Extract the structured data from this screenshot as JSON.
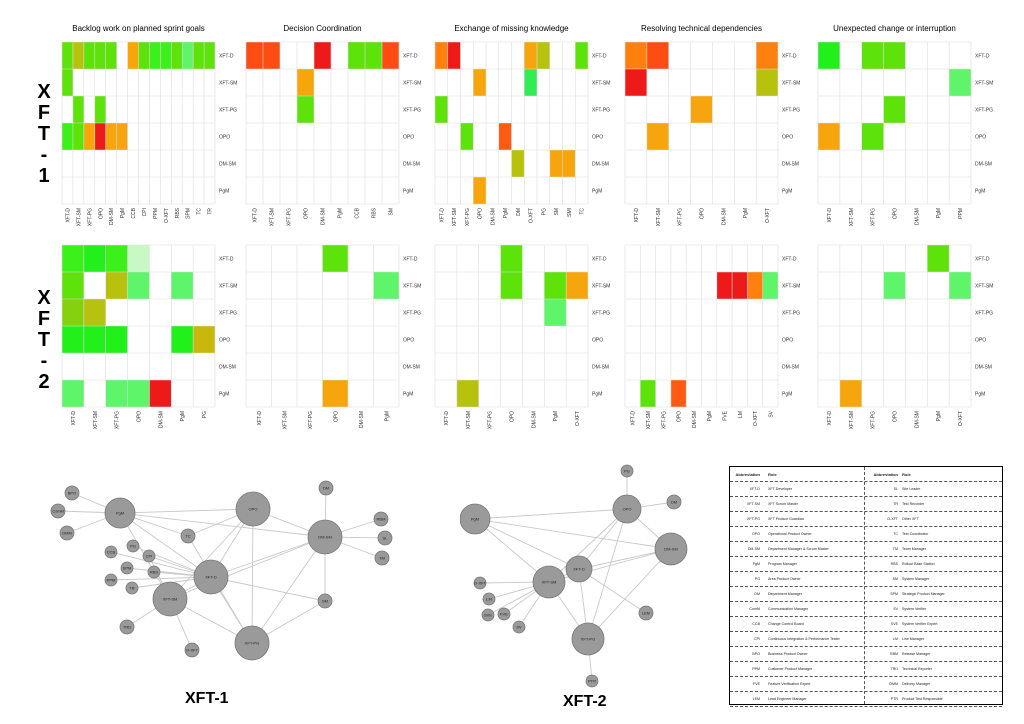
{
  "row_titles": [
    "XFT-1",
    "XFT-2"
  ],
  "panel_titles": [
    "Backlog work on planned sprint goals",
    "Decision Coordination",
    "Exchange of missing knowledge",
    "Resolving technical dependencies",
    "Unexpected change or interruption"
  ],
  "chart_data": [
    {
      "type": "heatmap",
      "group": "XFT-1",
      "title": "Backlog work on planned sprint goals",
      "rows": [
        "XFT-D",
        "XFT-SM",
        "XFT-PG",
        "OPO",
        "DM-SM",
        "PgM"
      ],
      "columns": [
        "XFT-D",
        "XFT-SM",
        "XFT-PG",
        "OPO",
        "DM-SM",
        "PgM",
        "CCB",
        "CPI",
        "PPM",
        "O-XFT",
        "RBS",
        "SPM",
        "TC",
        "TR"
      ],
      "cells": [
        [
          0,
          0,
          "#5de20a"
        ],
        [
          0,
          1,
          "#b7c20e"
        ],
        [
          0,
          2,
          "#5de20a"
        ],
        [
          0,
          3,
          "#5de20a"
        ],
        [
          0,
          4,
          "#5de20a"
        ],
        [
          0,
          6,
          "#f6a50d"
        ],
        [
          0,
          7,
          "#5de20a"
        ],
        [
          0,
          8,
          "#3cf01a"
        ],
        [
          0,
          9,
          "#3cf01a"
        ],
        [
          0,
          10,
          "#5de20a"
        ],
        [
          0,
          11,
          "#5ef56a"
        ],
        [
          0,
          12,
          "#5de20a"
        ],
        [
          0,
          13,
          "#5de20a"
        ],
        [
          1,
          0,
          "#5de20a"
        ],
        [
          2,
          1,
          "#5de20a"
        ],
        [
          2,
          3,
          "#5de20a"
        ],
        [
          3,
          0,
          "#3cf01a"
        ],
        [
          3,
          1,
          "#5de20a"
        ],
        [
          3,
          2,
          "#f6a50d"
        ],
        [
          3,
          3,
          "#ee1a1a"
        ],
        [
          3,
          4,
          "#f6a50d"
        ],
        [
          3,
          5,
          "#f6a50d"
        ]
      ]
    },
    {
      "type": "heatmap",
      "group": "XFT-1",
      "title": "Decision Coordination",
      "rows": [
        "XFT-D",
        "XFT-SM",
        "XFT-PG",
        "OPO",
        "DM-SM",
        "PgM"
      ],
      "columns": [
        "XFT-D",
        "XFT-SM",
        "XFT-PG",
        "OPO",
        "DM-SM",
        "PgM",
        "CCB",
        "RBS",
        "SM"
      ],
      "cells": [
        [
          0,
          0,
          "#ff4c12"
        ],
        [
          0,
          1,
          "#ff4c12"
        ],
        [
          0,
          4,
          "#ee1a1a"
        ],
        [
          0,
          6,
          "#5de20a"
        ],
        [
          0,
          7,
          "#5de20a"
        ],
        [
          0,
          8,
          "#ff4c12"
        ],
        [
          1,
          3,
          "#f6a50d"
        ],
        [
          2,
          3,
          "#5de20a"
        ]
      ]
    },
    {
      "type": "heatmap",
      "group": "XFT-1",
      "title": "Exchange of missing knowledge",
      "rows": [
        "XFT-D",
        "XFT-SM",
        "XFT-PG",
        "OPO",
        "DM-SM",
        "PgM"
      ],
      "columns": [
        "XFT-D",
        "XFT-SM",
        "XFT-PG",
        "OPO",
        "DM-SM",
        "PgM",
        "DM",
        "O-XFT",
        "PG",
        "SM",
        "SMI",
        "TC"
      ],
      "cells": [
        [
          0,
          0,
          "#ff7f0f"
        ],
        [
          0,
          1,
          "#ee1a1a"
        ],
        [
          0,
          7,
          "#f6a50d"
        ],
        [
          0,
          8,
          "#b7c20e"
        ],
        [
          0,
          11,
          "#5de20a"
        ],
        [
          1,
          3,
          "#f6a50d"
        ],
        [
          1,
          7,
          "#2eee52"
        ],
        [
          2,
          0,
          "#5de20a"
        ],
        [
          3,
          2,
          "#5de20a"
        ],
        [
          3,
          5,
          "#ff5a14"
        ],
        [
          4,
          6,
          "#b7c20e"
        ],
        [
          4,
          9,
          "#f6a50d"
        ],
        [
          4,
          10,
          "#f6a50d"
        ],
        [
          5,
          3,
          "#f6a50d"
        ]
      ]
    },
    {
      "type": "heatmap",
      "group": "XFT-1",
      "title": "Resolving technical dependencies",
      "rows": [
        "XFT-D",
        "XFT-SM",
        "XFT-PG",
        "OPO",
        "DM-SM",
        "PgM"
      ],
      "columns": [
        "XFT-D",
        "XFT-SM",
        "XFT-PG",
        "OPO",
        "DM-SM",
        "PgM",
        "O-XFT"
      ],
      "cells": [
        [
          0,
          0,
          "#ff7f0f"
        ],
        [
          0,
          1,
          "#ff4c12"
        ],
        [
          0,
          6,
          "#ff7f0f"
        ],
        [
          1,
          0,
          "#ee1a1a"
        ],
        [
          1,
          6,
          "#b7c20e"
        ],
        [
          2,
          3,
          "#f6a50d"
        ],
        [
          3,
          1,
          "#f6a50d"
        ]
      ]
    },
    {
      "type": "heatmap",
      "group": "XFT-1",
      "title": "Unexpected change or interruption",
      "rows": [
        "XFT-D",
        "XFT-SM",
        "XFT-PG",
        "OPO",
        "DM-SM",
        "PgM"
      ],
      "columns": [
        "XFT-D",
        "XFT-SM",
        "XFT-PG",
        "OPO",
        "DM-SM",
        "PgM",
        "PPM"
      ],
      "cells": [
        [
          0,
          0,
          "#21f01a"
        ],
        [
          0,
          2,
          "#5de20a"
        ],
        [
          0,
          3,
          "#5de20a"
        ],
        [
          1,
          6,
          "#5ef56a"
        ],
        [
          2,
          3,
          "#5de20a"
        ],
        [
          3,
          0,
          "#f6a50d"
        ],
        [
          3,
          2,
          "#5de20a"
        ]
      ]
    },
    {
      "type": "heatmap",
      "group": "XFT-2",
      "title": "Backlog work on planned sprint goals",
      "rows": [
        "XFT-D",
        "XFT-SM",
        "XFT-PG",
        "OPO",
        "DM-SM",
        "PgM"
      ],
      "columns": [
        "XFT-D",
        "XFT-SM",
        "XFT-PG",
        "OPO",
        "DM-SM",
        "PgM",
        "PG"
      ],
      "cells": [
        [
          0,
          0,
          "#3cf01a"
        ],
        [
          0,
          1,
          "#21f01a"
        ],
        [
          0,
          2,
          "#3cf01a"
        ],
        [
          0,
          3,
          "#c8f8c4"
        ],
        [
          1,
          0,
          "#5de20a"
        ],
        [
          1,
          2,
          "#b7c20e"
        ],
        [
          1,
          3,
          "#5ef56a"
        ],
        [
          1,
          5,
          "#5ef56a"
        ],
        [
          2,
          0,
          "#86d10e"
        ],
        [
          2,
          1,
          "#b7c20e"
        ],
        [
          3,
          0,
          "#21f01a"
        ],
        [
          3,
          1,
          "#21f01a"
        ],
        [
          3,
          2,
          "#21f01a"
        ],
        [
          3,
          5,
          "#21f01a"
        ],
        [
          3,
          6,
          "#c8b80e"
        ],
        [
          5,
          0,
          "#5ef56a"
        ],
        [
          5,
          2,
          "#5ef56a"
        ],
        [
          5,
          3,
          "#5ef56a"
        ],
        [
          5,
          4,
          "#ee1a1a"
        ]
      ]
    },
    {
      "type": "heatmap",
      "group": "XFT-2",
      "title": "Decision Coordination",
      "rows": [
        "XFT-D",
        "XFT-SM",
        "XFT-PG",
        "OPO",
        "DM-SM",
        "PgM"
      ],
      "columns": [
        "XFT-D",
        "XFT-SM",
        "XFT-PG",
        "OPO",
        "DM-SM",
        "PgM"
      ],
      "cells": [
        [
          0,
          3,
          "#5de20a"
        ],
        [
          1,
          5,
          "#5ef56a"
        ],
        [
          5,
          3,
          "#f6a50d"
        ]
      ]
    },
    {
      "type": "heatmap",
      "group": "XFT-2",
      "title": "Exchange of missing knowledge",
      "rows": [
        "XFT-D",
        "XFT-SM",
        "XFT-PG",
        "OPO",
        "DM-SM",
        "PgM"
      ],
      "columns": [
        "XFT-D",
        "XFT-SM",
        "XFT-PG",
        "OPO",
        "DM-SM",
        "PgM",
        "O-XFT"
      ],
      "cells": [
        [
          0,
          3,
          "#5de20a"
        ],
        [
          1,
          3,
          "#5de20a"
        ],
        [
          1,
          5,
          "#5de20a"
        ],
        [
          1,
          6,
          "#f6a50d"
        ],
        [
          2,
          5,
          "#5ef56a"
        ],
        [
          5,
          1,
          "#b7c20e"
        ]
      ]
    },
    {
      "type": "heatmap",
      "group": "XFT-2",
      "title": "Resolving technical dependencies",
      "rows": [
        "XFT-D",
        "XFT-SM",
        "XFT-PG",
        "OPO",
        "DM-SM",
        "PgM"
      ],
      "columns": [
        "XFT-D",
        "XFT-SM",
        "XFT-PG",
        "OPO",
        "DM-SM",
        "PgM",
        "FVE",
        "LM",
        "O-XFT",
        "SV"
      ],
      "cells": [
        [
          1,
          6,
          "#ee1a1a"
        ],
        [
          1,
          7,
          "#ee1a1a"
        ],
        [
          1,
          8,
          "#ff7f0f"
        ],
        [
          1,
          9,
          "#5ef56a"
        ],
        [
          5,
          1,
          "#5de20a"
        ],
        [
          5,
          3,
          "#ff5a14"
        ]
      ]
    },
    {
      "type": "heatmap",
      "group": "XFT-2",
      "title": "Unexpected change or interruption",
      "rows": [
        "XFT-D",
        "XFT-SM",
        "XFT-PG",
        "OPO",
        "DM-SM",
        "PgM"
      ],
      "columns": [
        "XFT-D",
        "XFT-SM",
        "XFT-PG",
        "OPO",
        "DM-SM",
        "PgM",
        "O-XFT"
      ],
      "cells": [
        [
          0,
          5,
          "#5de20a"
        ],
        [
          1,
          3,
          "#5ef56a"
        ],
        [
          1,
          6,
          "#5ef56a"
        ],
        [
          5,
          1,
          "#f6a50d"
        ]
      ]
    }
  ],
  "networks": [
    {
      "title": "XFT-1",
      "nodes": [
        "PgM",
        "OPO",
        "DM-SM",
        "XFT-D",
        "XFT-SM",
        "XFT-PG",
        "BPO",
        "ComM",
        "DMM",
        "CCB",
        "PG",
        "CPI",
        "SPM",
        "RBS",
        "PPM",
        "TR",
        "TC",
        "TRD",
        "O-XFT",
        "DM",
        "RBM",
        "SL",
        "TM",
        "SM"
      ],
      "node_colors": {
        "fill": "#9a9a9a",
        "stroke": "#777777",
        "edge": "#c8c8c8"
      }
    },
    {
      "title": "XFT-2",
      "nodes": [
        "PgM",
        "OPO",
        "DM-SM",
        "XFT-D",
        "XFT-SM",
        "XFT-PG",
        "PG",
        "DM",
        "O-XFT",
        "LM",
        "FVE",
        "SVE",
        "SV",
        "LEM",
        "PTR"
      ],
      "node_colors": {
        "fill": "#9a9a9a",
        "stroke": "#777777",
        "edge": "#c8c8c8"
      }
    }
  ],
  "abbreviation_table": {
    "headers": [
      "Abbreviation",
      "Role",
      "Abbreviation",
      "Role"
    ],
    "rows": [
      [
        "XFT-D",
        "XFT Developer",
        "SL",
        "Site Leader"
      ],
      [
        "XFT-SM",
        "XFT Scrum Master",
        "TR",
        "Test Recorder"
      ],
      [
        "XFT-PG",
        "XFT Product Guardian",
        "O-XFT",
        "Other XFT"
      ],
      [
        "OPO",
        "Operational Product Owner",
        "TC",
        "Test Coordinator"
      ],
      [
        "DM-SM",
        "Department Manager & Scrum Master",
        "TM",
        "Team Manager"
      ],
      [
        "PgM",
        "Program Manager",
        "RBS",
        "Rollout Base Station"
      ],
      [
        "PG",
        "Area Product Owner",
        "SM",
        "System Manager"
      ],
      [
        "DM",
        "Department Manager",
        "SPM",
        "Strategic Product Manager"
      ],
      [
        "ComM",
        "Communication Manager",
        "SV",
        "System Verifier"
      ],
      [
        "CCB",
        "Change Control Board",
        "SVE",
        "System Verifier Expert"
      ],
      [
        "CPI",
        "Continuous Integration & Performance Tester",
        "LM",
        "Line Manager"
      ],
      [
        "BPO",
        "Business Product Owner",
        "RBM",
        "Release Manager"
      ],
      [
        "PPM",
        "Customer Product Manager",
        "TRD",
        "Technical Reporter"
      ],
      [
        "FVE",
        "Feature Verification Expert",
        "DMM",
        "Delivery Manager"
      ],
      [
        "LEM",
        "Lead Engineer Manager",
        "PTR",
        "Product Test Responsible"
      ]
    ]
  }
}
